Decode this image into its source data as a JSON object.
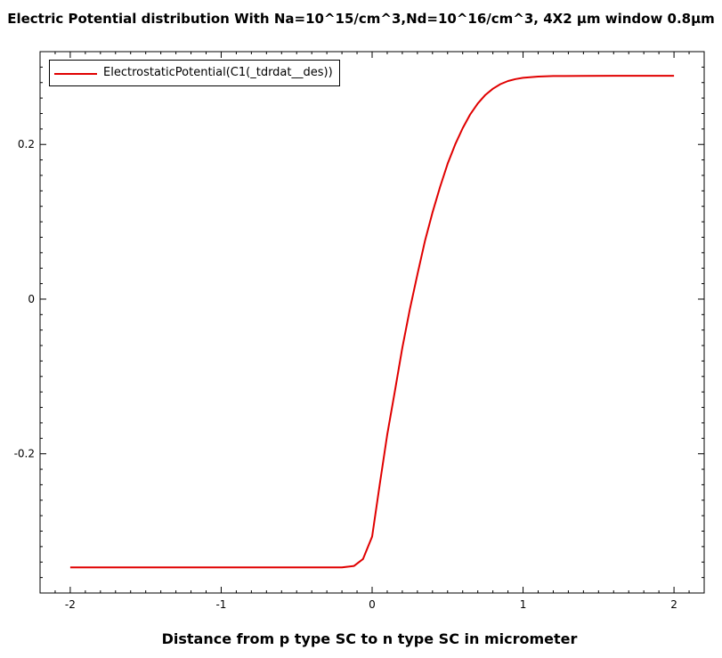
{
  "chart_data": {
    "type": "line",
    "title": "Electric Potential distribution With Na=10^15/cm^3,Nd=10^16/cm^3, 4X2 µm window 0.8µm",
    "xlabel": "Distance from p type SC to n type SC in micrometer",
    "ylabel": "",
    "xlim": [
      -2.2,
      2.2
    ],
    "ylim": [
      -0.38,
      0.32
    ],
    "x_ticks": [
      -2,
      -1,
      0,
      1,
      2
    ],
    "x_tick_labels": [
      "-2",
      "-1",
      "0",
      "1",
      "2"
    ],
    "y_ticks": [
      -0.2,
      0,
      0.2
    ],
    "y_tick_labels": [
      "-0.2",
      "0",
      "0.2"
    ],
    "grid": false,
    "legend_position": "top-left",
    "series": [
      {
        "name": "ElectrostaticPotential(C1(_tdrdat__des))",
        "color": "#e00000",
        "x": [
          -2.0,
          -1.5,
          -1.0,
          -0.5,
          -0.2,
          -0.12,
          -0.06,
          0.0,
          0.05,
          0.1,
          0.15,
          0.2,
          0.25,
          0.3,
          0.35,
          0.4,
          0.45,
          0.5,
          0.55,
          0.6,
          0.65,
          0.7,
          0.75,
          0.8,
          0.85,
          0.9,
          0.95,
          1.0,
          1.1,
          1.2,
          1.4,
          1.6,
          2.0
        ],
        "y": [
          -0.347,
          -0.347,
          -0.347,
          -0.347,
          -0.347,
          -0.345,
          -0.336,
          -0.307,
          -0.24,
          -0.175,
          -0.12,
          -0.063,
          -0.013,
          0.032,
          0.075,
          0.112,
          0.145,
          0.175,
          0.2,
          0.221,
          0.239,
          0.253,
          0.264,
          0.272,
          0.278,
          0.282,
          0.2845,
          0.2862,
          0.2878,
          0.2884,
          0.2887,
          0.2888,
          0.2888
        ]
      }
    ]
  }
}
